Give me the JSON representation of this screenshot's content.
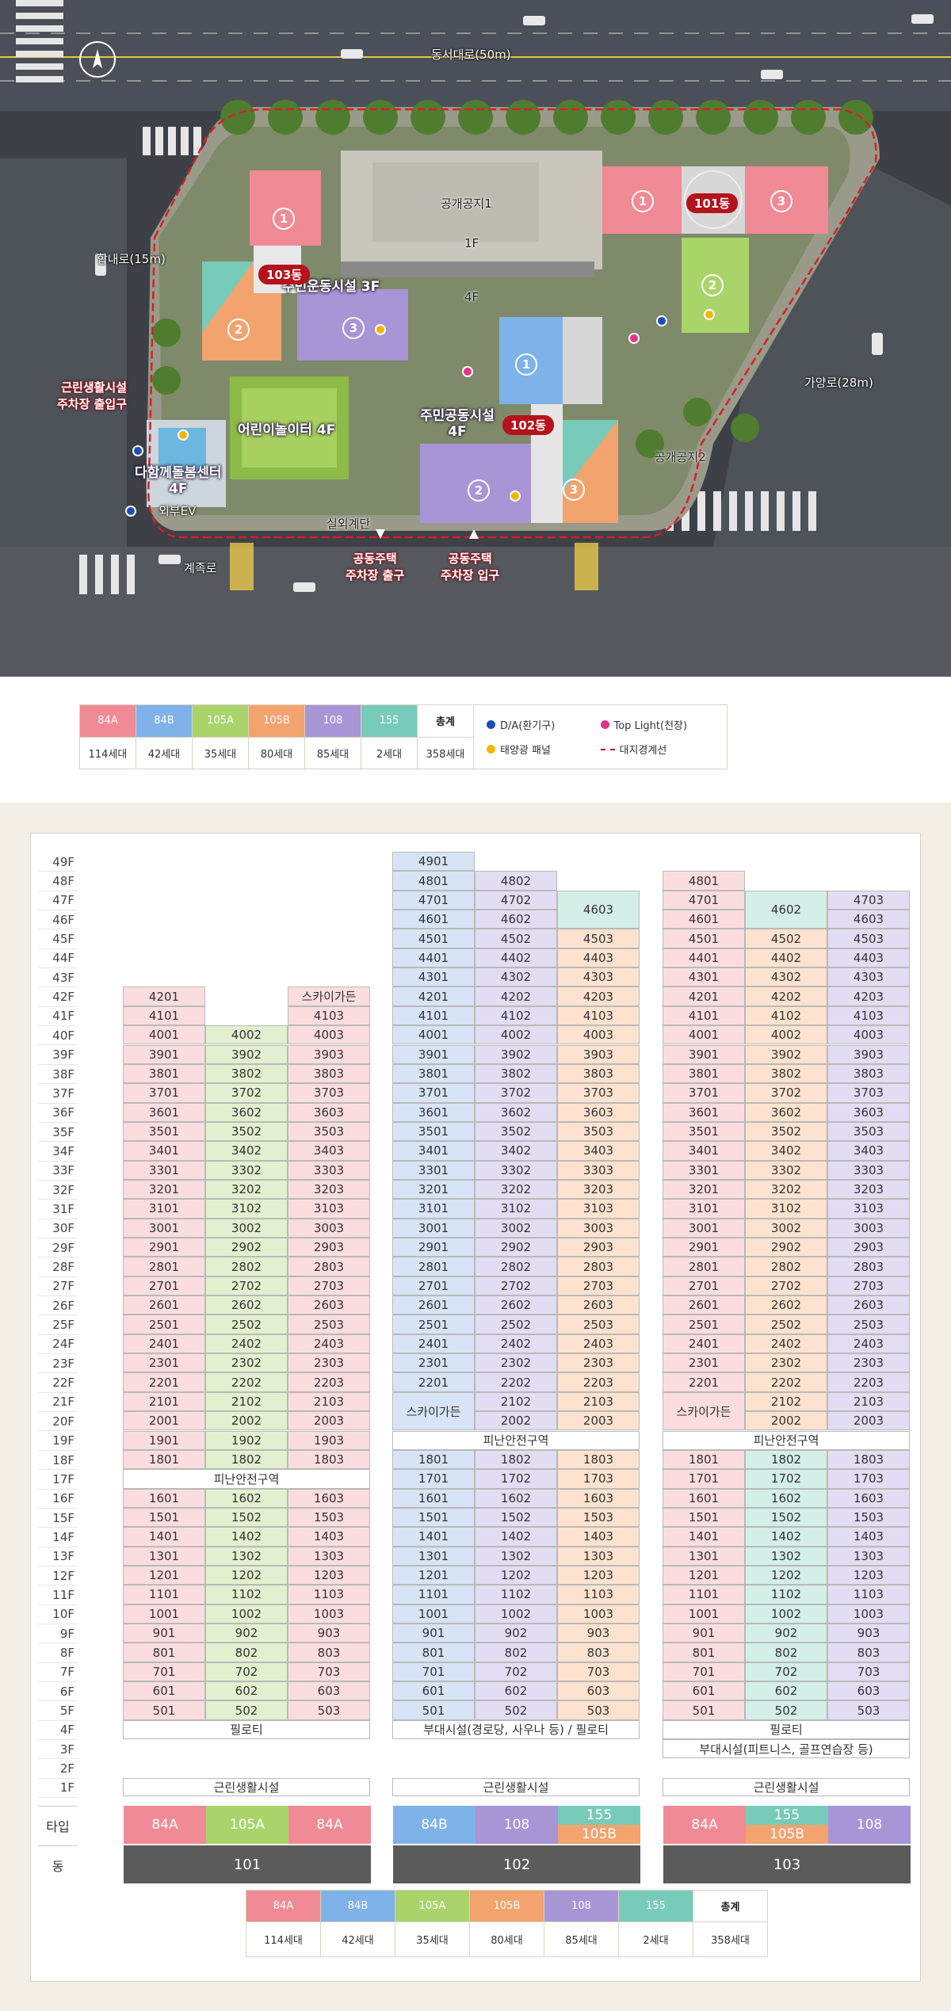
{
  "colors": {
    "84A": "#f08a94",
    "84B": "#7fb2e8",
    "105A": "#a9d46a",
    "105B": "#f2a36e",
    "108": "#a795d6",
    "155": "#78cbb9",
    "bg84A": "#fbdde0",
    "bg84B": "#d6e4f5",
    "bg105A": "#e3f0cf",
    "bg105B": "#fde3cf",
    "bg108": "#e3ddf3",
    "bg155": "#d4efe7"
  },
  "map": {
    "road_top": "동서대로(50m)",
    "road_left": "합내로(15m)",
    "road_right": "가양로(28m)",
    "road_bottom": "계족로",
    "public_space_1": "공개공지1",
    "public_space_2": "공개공지2",
    "floor_1f": "1F",
    "floor_4f": "4F",
    "community_3f": "주민운동시설 3F",
    "community_4f_line1": "주민공동시설",
    "community_4f_line2": "4F",
    "playground": "어린이놀이터 4F",
    "care_center_line1": "다함께돌봄센터",
    "care_center_line2": "4F",
    "exterior_ev": "외부EV",
    "outdoor_stairs": "실외계단",
    "retail_entrance_line1": "근린생활시설",
    "retail_entrance_line2": "주차장 출입구",
    "parking_exit_line1": "공동주택",
    "parking_exit_line2": "주차장 출구",
    "parking_entry_line1": "공동주택",
    "parking_entry_line2": "주차장 입구",
    "dong_101": "101동",
    "dong_102": "102동",
    "dong_103": "103동",
    "circle_1": "1",
    "circle_2": "2",
    "circle_3": "3"
  },
  "legend": {
    "types": [
      "84A",
      "84B",
      "105A",
      "105B",
      "108",
      "155"
    ],
    "counts": [
      "114세대",
      "42세대",
      "35세대",
      "80세대",
      "85세대",
      "2세대"
    ],
    "total_label": "총계",
    "total_count": "358세대",
    "da": "D/A(환기구)",
    "toplight": "Top Light(천장)",
    "solar": "태양광 패널",
    "boundary": "대지경계선"
  },
  "chart": {
    "floors": [
      "49F",
      "48F",
      "47F",
      "46F",
      "45F",
      "44F",
      "43F",
      "42F",
      "41F",
      "40F",
      "39F",
      "38F",
      "37F",
      "36F",
      "35F",
      "34F",
      "33F",
      "32F",
      "31F",
      "30F",
      "29F",
      "28F",
      "27F",
      "26F",
      "25F",
      "24F",
      "23F",
      "22F",
      "21F",
      "20F",
      "19F",
      "18F",
      "17F",
      "16F",
      "15F",
      "14F",
      "13F",
      "12F",
      "11F",
      "10F",
      "9F",
      "8F",
      "7F",
      "6F",
      "5F",
      "4F",
      "3F",
      "2F",
      "1F"
    ],
    "row_type_label": "타입",
    "row_dong_label": "동",
    "sky_garden": "스카이가든",
    "refuge_area": "피난안전구역",
    "piloti": "필로티",
    "retail": "근린생활시설",
    "aux_102": "부대시설(경로당, 사우나 등) / 필로티",
    "aux_103": "부대시설(피트니스, 골프연습장 등)",
    "buildings": [
      {
        "dong": "101",
        "types": [
          "84A",
          "105A",
          "84A"
        ]
      },
      {
        "dong": "102",
        "types": [
          "84B",
          "108",
          "155",
          "105B"
        ]
      },
      {
        "dong": "103",
        "types": [
          "84A",
          "155",
          "105B",
          "108"
        ]
      }
    ]
  }
}
